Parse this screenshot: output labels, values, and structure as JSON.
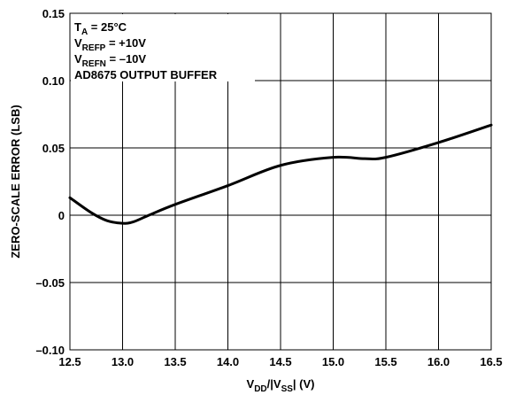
{
  "chart_data": {
    "type": "line",
    "xlabel": {
      "main": "V",
      "sub1": "DD",
      "mid": "/|V",
      "sub2": "SS",
      "tail": "| (V)"
    },
    "ylabel": "ZERO-SCALE ERROR (LSB)",
    "xlim": [
      12.5,
      16.5
    ],
    "ylim": [
      -0.1,
      0.15
    ],
    "xticks": [
      "12.5",
      "13.0",
      "13.5",
      "14.0",
      "14.5",
      "15.0",
      "15.5",
      "16.0",
      "16.5"
    ],
    "yticks": [
      "0.15",
      "0.10",
      "0.05",
      "0",
      "–0.05",
      "–0.10"
    ],
    "grid": true,
    "annotations": [
      {
        "main": "T",
        "sub": "A",
        "tail": " = 25°C"
      },
      {
        "main": "V",
        "sub": "REFP",
        "tail": " = +10V"
      },
      {
        "main": "V",
        "sub": "REFN",
        "tail": " = –10V"
      },
      {
        "main": "AD8675 OUTPUT BUFFER",
        "sub": "",
        "tail": ""
      }
    ],
    "series": [
      {
        "x": [
          12.5,
          12.7,
          12.85,
          13.0,
          13.1,
          13.25,
          13.5,
          14.0,
          14.5,
          15.0,
          15.3,
          15.5,
          16.0,
          16.5
        ],
        "y": [
          0.013,
          0.002,
          -0.004,
          -0.006,
          -0.005,
          0.0,
          0.008,
          0.022,
          0.037,
          0.043,
          0.042,
          0.043,
          0.054,
          0.067
        ]
      }
    ]
  }
}
